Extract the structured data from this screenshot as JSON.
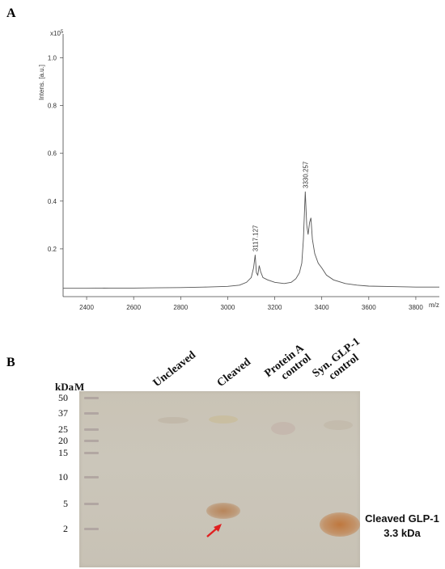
{
  "panel_a": {
    "label": "A"
  },
  "panel_b": {
    "label": "B"
  },
  "chart_data": {
    "type": "line",
    "title": "",
    "ylabel": "Intens. [a.u.]",
    "xlabel": "m/z",
    "y_multiplier": "x10",
    "y_multiplier_exp": "5",
    "xlim": [
      2300,
      3900
    ],
    "ylim": [
      0,
      1.1
    ],
    "x_ticks": [
      2400,
      2600,
      2800,
      3000,
      3200,
      3400,
      3600,
      3800
    ],
    "y_ticks": [
      0.2,
      0.4,
      0.6,
      0.8,
      1.0
    ],
    "y_tick_labels": [
      "0.2",
      "0.4",
      "0.6",
      "0.8",
      "1.0"
    ],
    "series": [
      {
        "points": [
          [
            2300,
            0.035
          ],
          [
            2400,
            0.035
          ],
          [
            2500,
            0.036
          ],
          [
            2600,
            0.036
          ],
          [
            2700,
            0.037
          ],
          [
            2800,
            0.038
          ],
          [
            2900,
            0.04
          ],
          [
            3000,
            0.043
          ],
          [
            3050,
            0.048
          ],
          [
            3080,
            0.06
          ],
          [
            3100,
            0.08
          ],
          [
            3110,
            0.12
          ],
          [
            3117,
            0.175
          ],
          [
            3122,
            0.1
          ],
          [
            3128,
            0.09
          ],
          [
            3134,
            0.13
          ],
          [
            3140,
            0.105
          ],
          [
            3150,
            0.08
          ],
          [
            3170,
            0.07
          ],
          [
            3200,
            0.06
          ],
          [
            3240,
            0.055
          ],
          [
            3270,
            0.06
          ],
          [
            3290,
            0.075
          ],
          [
            3305,
            0.1
          ],
          [
            3315,
            0.14
          ],
          [
            3322,
            0.24
          ],
          [
            3330,
            0.44
          ],
          [
            3336,
            0.3
          ],
          [
            3342,
            0.26
          ],
          [
            3348,
            0.31
          ],
          [
            3354,
            0.33
          ],
          [
            3360,
            0.24
          ],
          [
            3370,
            0.18
          ],
          [
            3385,
            0.14
          ],
          [
            3400,
            0.12
          ],
          [
            3420,
            0.09
          ],
          [
            3450,
            0.07
          ],
          [
            3500,
            0.055
          ],
          [
            3550,
            0.048
          ],
          [
            3600,
            0.044
          ],
          [
            3700,
            0.042
          ],
          [
            3800,
            0.04
          ],
          [
            3900,
            0.04
          ]
        ]
      }
    ],
    "annotations": [
      {
        "text": "3117.127",
        "x": 3117,
        "y": 0.175
      },
      {
        "text": "3330.257",
        "x": 3330,
        "y": 0.44
      }
    ]
  },
  "blot": {
    "unit_label": "kDa",
    "marker_label": "M",
    "mw_markers": [
      {
        "label": "50",
        "kda": 50
      },
      {
        "label": "37",
        "kda": 37
      },
      {
        "label": "25",
        "kda": 25
      },
      {
        "label": "20",
        "kda": 20
      },
      {
        "label": "15",
        "kda": 15
      },
      {
        "label": "10",
        "kda": 10
      },
      {
        "label": "5",
        "kda": 5
      },
      {
        "label": "2",
        "kda": 2
      }
    ],
    "lanes": [
      {
        "label_lines": [
          "Uncleaved"
        ]
      },
      {
        "label_lines": [
          "Cleaved"
        ]
      },
      {
        "label_lines": [
          "Protein A",
          "control"
        ]
      },
      {
        "label_lines": [
          "Syn. GLP-1",
          "control"
        ]
      }
    ],
    "side_label_line1": "Cleaved GLP-1",
    "side_label_line2": "3.3 kDa",
    "arrow_color": "#e02020",
    "band_color": "#b47a4a"
  }
}
